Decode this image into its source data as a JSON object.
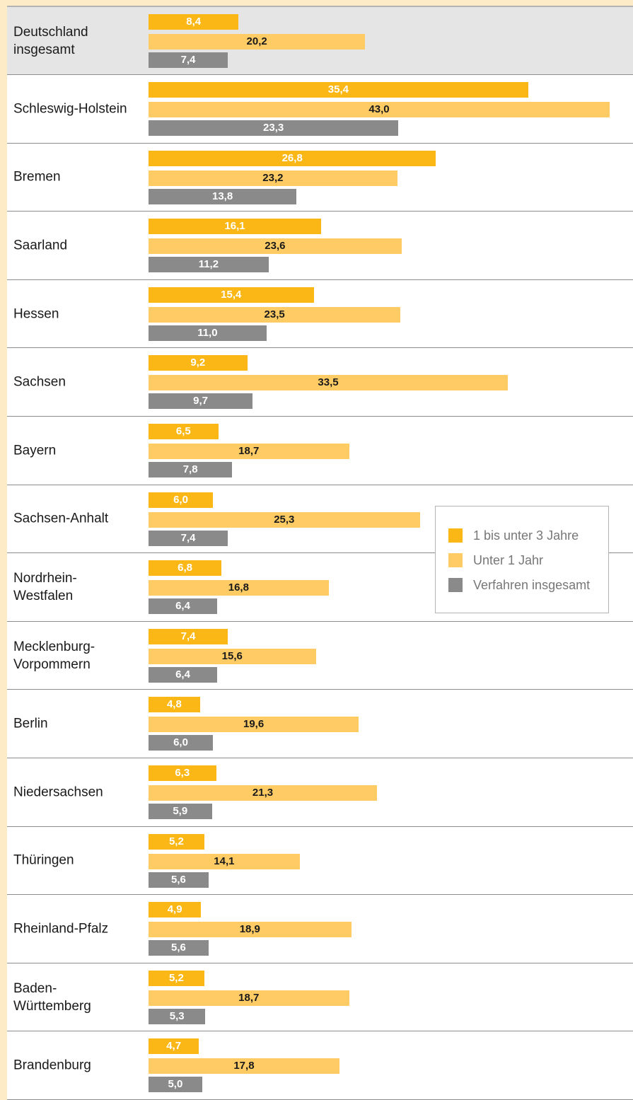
{
  "chart_data": {
    "type": "bar",
    "orientation": "horizontal",
    "categories": [
      "Deutschland\ninsgesamt",
      "Schleswig-Holstein",
      "Bremen",
      "Saarland",
      "Hessen",
      "Sachsen",
      "Bayern",
      "Sachsen-Anhalt",
      "Nordrhein-\nWestfalen",
      "Mecklenburg-\nVorpommern",
      "Berlin",
      "Niedersachsen",
      "Thüringen",
      "Rheinland-Pfalz",
      "Baden-\nWürttemberg",
      "Brandenburg"
    ],
    "series": [
      {
        "name": "1 bis unter 3 Jahre",
        "color": "#fab715",
        "values": [
          8.4,
          35.4,
          26.8,
          16.1,
          15.4,
          9.2,
          6.5,
          6.0,
          6.8,
          7.4,
          4.8,
          6.3,
          5.2,
          4.9,
          5.2,
          4.7
        ],
        "labels": [
          "8,4",
          "35,4",
          "26,8",
          "16,1",
          "15,4",
          "9,2",
          "6,5",
          "6,0",
          "6,8",
          "7,4",
          "4,8",
          "6,3",
          "5,2",
          "4,9",
          "5,2",
          "4,7"
        ]
      },
      {
        "name": "Unter 1 Jahr",
        "color": "#fecb65",
        "values": [
          20.2,
          43.0,
          23.2,
          23.6,
          23.5,
          33.5,
          18.7,
          25.3,
          16.8,
          15.6,
          19.6,
          21.3,
          14.1,
          18.9,
          18.7,
          17.8
        ],
        "labels": [
          "20,2",
          "43,0",
          "23,2",
          "23,6",
          "23,5",
          "33,5",
          "18,7",
          "25,3",
          "16,8",
          "15,6",
          "19,6",
          "21,3",
          "14,1",
          "18,9",
          "18,7",
          "17,8"
        ]
      },
      {
        "name": "Verfahren insgesamt",
        "color": "#8a8a8b",
        "values": [
          7.4,
          23.3,
          13.8,
          11.2,
          11.0,
          9.7,
          7.8,
          7.4,
          6.4,
          6.4,
          6.0,
          5.9,
          5.6,
          5.6,
          5.3,
          5.0
        ],
        "labels": [
          "7,4",
          "23,3",
          "13,8",
          "11,2",
          "11,0",
          "9,7",
          "7,8",
          "7,4",
          "6,4",
          "6,4",
          "6,0",
          "5,9",
          "5,6",
          "5,6",
          "5,3",
          "5,0"
        ]
      }
    ],
    "highlight_category": "Deutschland\ninsgesamt",
    "title": "",
    "xlabel": "",
    "ylabel": "",
    "xlim": [
      0,
      43.0
    ],
    "grid": false,
    "axes_visible": false,
    "legend_position": "right"
  }
}
